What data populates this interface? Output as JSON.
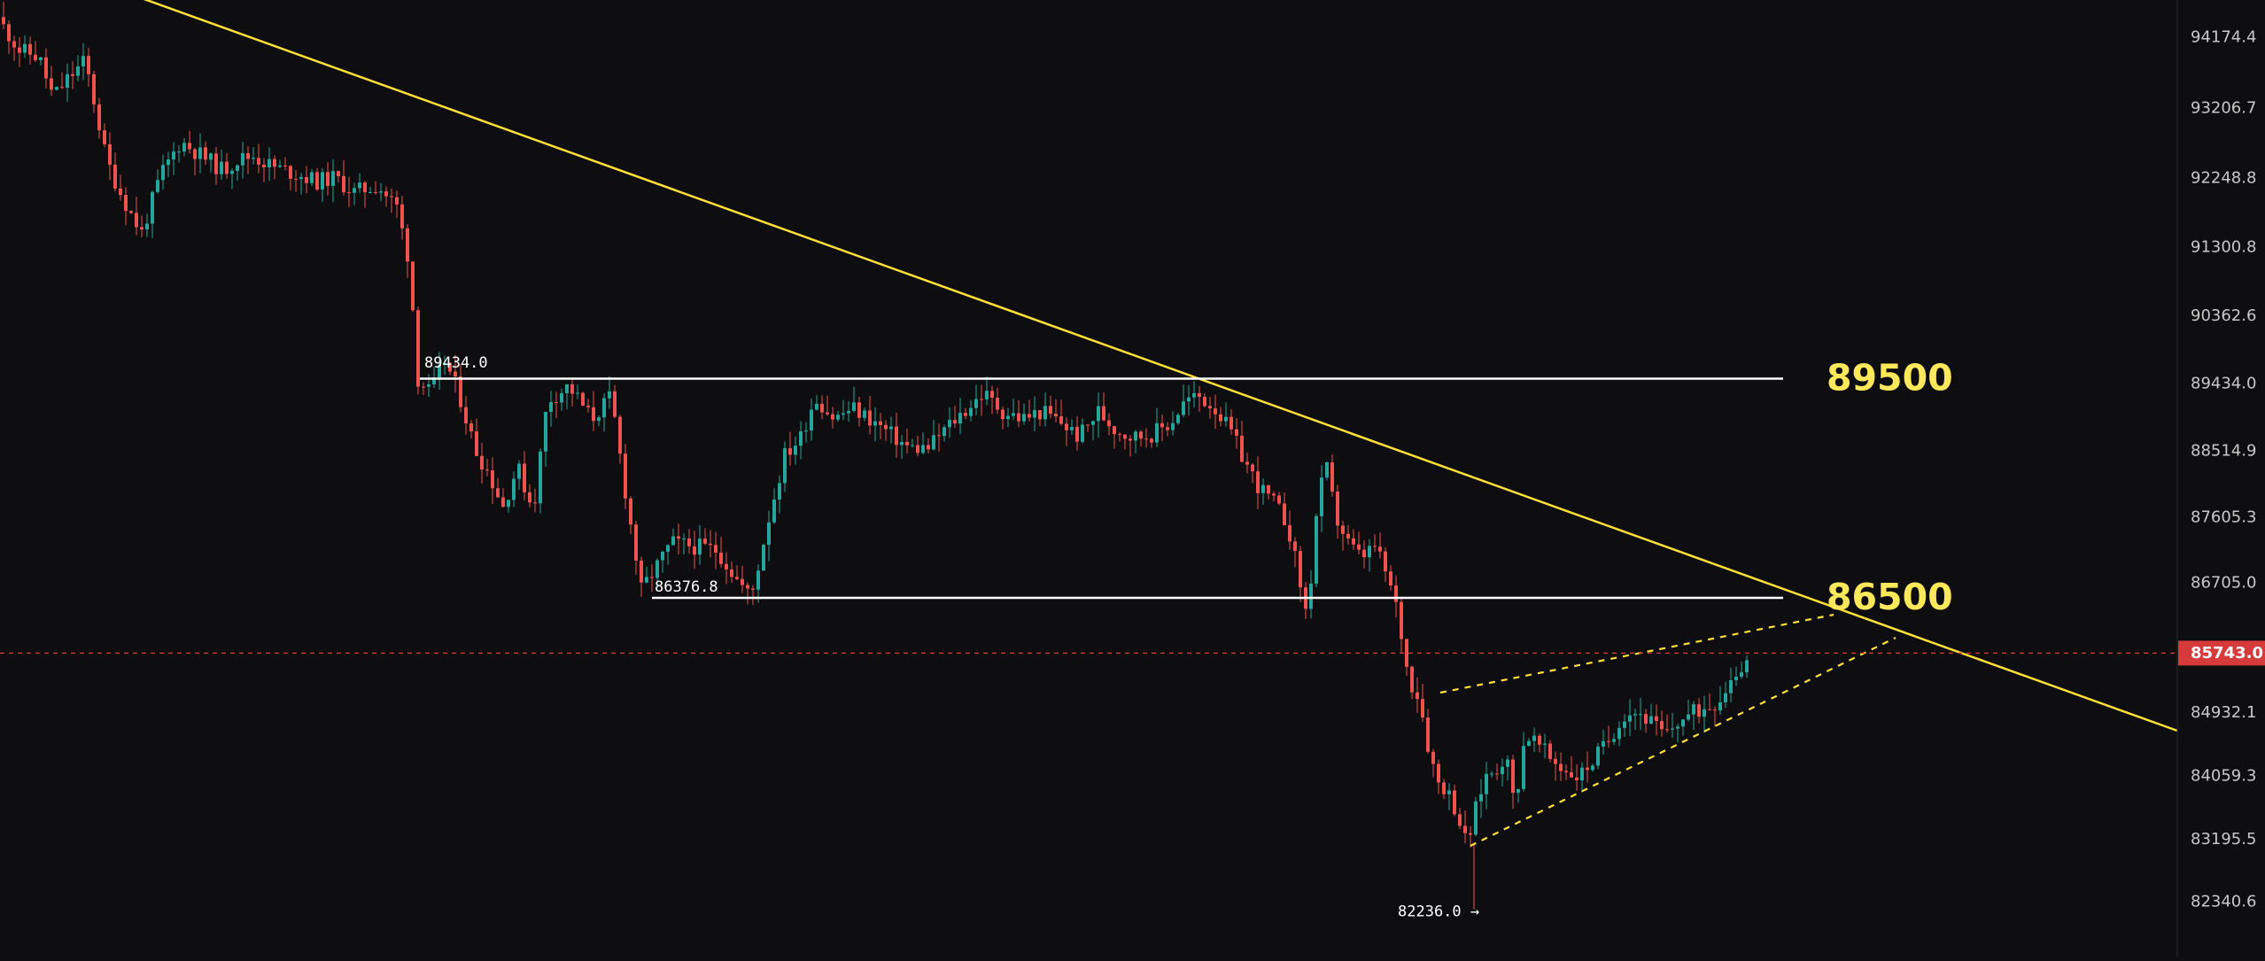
{
  "chart_data": {
    "type": "candlestick",
    "y_axis": {
      "position": "right",
      "ticks": [
        94174.4,
        93206.7,
        92248.8,
        91300.8,
        90362.6,
        89434.0,
        88514.9,
        87605.3,
        86705.0,
        84932.1,
        84059.3,
        83195.5,
        82340.6
      ],
      "tick_labels": [
        "94174.4",
        "93206.7",
        "92248.8",
        "91300.8",
        "90362.6",
        "89434.0",
        "88514.9",
        "87605.3",
        "86705.0",
        "84932.1",
        "84059.3",
        "83195.5",
        "82340.6"
      ]
    },
    "current_price": {
      "value": 85743.0,
      "label": "85743.0",
      "color": "#d63a3a"
    },
    "levels": [
      {
        "price": 89500,
        "label": "89500",
        "color": "#ffffff"
      },
      {
        "price": 86500,
        "label": "86500",
        "color": "#ffffff"
      }
    ],
    "price_annotations": [
      {
        "label": "89434.0"
      },
      {
        "label": "86376.8"
      },
      {
        "label": "82236.0 →"
      }
    ],
    "trend_color": "#ffe03a",
    "up_color": "#26a69a",
    "down_color": "#ef5350"
  }
}
